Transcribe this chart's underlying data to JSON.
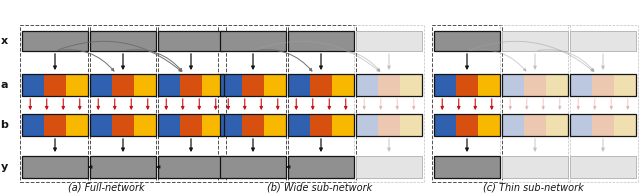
{
  "fig_width": 6.4,
  "fig_height": 1.96,
  "dpi": 100,
  "bg_color": "#ffffff",
  "colors": {
    "blue": "#3060b0",
    "orange": "#d85010",
    "yellow": "#f8b800",
    "gray_box": "#909090",
    "gray_light": "#b8b8b8",
    "gray_very_light": "#e4e4e4",
    "red_arrow": "#cc1010",
    "black": "#151515",
    "dark_gray": "#505050",
    "faded_blue": "#bcc8e0",
    "faded_orange": "#edc8b0",
    "faded_yellow": "#f0e0b0"
  },
  "panel_labels": [
    "(a) Full-network",
    "(b) Wide sub-network",
    "(c) Thin sub-network"
  ],
  "row_labels": [
    "x",
    "a",
    "b",
    "y"
  ],
  "n_active": [
    3,
    2,
    1
  ]
}
